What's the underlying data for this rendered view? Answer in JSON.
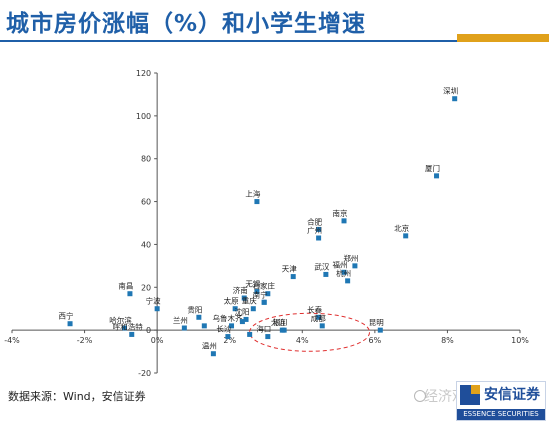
{
  "title": "城市房价涨幅（%）和小学生增速",
  "source": "数据来源：Wind，安信证券",
  "logo": {
    "cn": "安信证券",
    "en": "ESSENCE SECURITIES"
  },
  "watermark": "经济观点事",
  "colors": {
    "accent": "#1f5fa8",
    "marker": "#1f77b4",
    "gold": "#e0a11b",
    "ellipse": "#e03030"
  },
  "chart_data": {
    "type": "scatter",
    "title": "",
    "xlabel": "",
    "ylabel": "",
    "xlim": [
      -0.04,
      0.1
    ],
    "ylim": [
      -20,
      120
    ],
    "x_ticks": [
      "-4%",
      "-2%",
      "0%",
      "2%",
      "4%",
      "6%",
      "8%",
      "10%"
    ],
    "y_ticks": [
      "-20",
      "0",
      "20",
      "40",
      "60",
      "80",
      "100",
      "120"
    ],
    "grid": false,
    "points": [
      {
        "label": "深圳",
        "x": 0.082,
        "y": 108
      },
      {
        "label": "厦门",
        "x": 0.077,
        "y": 72
      },
      {
        "label": "上海",
        "x": 0.0275,
        "y": 60
      },
      {
        "label": "南京",
        "x": 0.0515,
        "y": 51
      },
      {
        "label": "合肥",
        "x": 0.0445,
        "y": 47
      },
      {
        "label": "广州",
        "x": 0.0445,
        "y": 43
      },
      {
        "label": "北京",
        "x": 0.0685,
        "y": 44
      },
      {
        "label": "郑州",
        "x": 0.0545,
        "y": 30
      },
      {
        "label": "武汉",
        "x": 0.0465,
        "y": 26
      },
      {
        "label": "福州",
        "x": 0.0515,
        "y": 27
      },
      {
        "label": "杭州",
        "x": 0.0525,
        "y": 23
      },
      {
        "label": "天津",
        "x": 0.0375,
        "y": 25
      },
      {
        "label": "南昌",
        "x": -0.0075,
        "y": 17
      },
      {
        "label": "宁波",
        "x": 0.0,
        "y": 10
      },
      {
        "label": "无锡",
        "x": 0.0275,
        "y": 18
      },
      {
        "label": "石家庄",
        "x": 0.0305,
        "y": 17
      },
      {
        "label": "济南",
        "x": 0.024,
        "y": 15
      },
      {
        "label": "南宁",
        "x": 0.0295,
        "y": 13
      },
      {
        "label": "太原",
        "x": 0.0215,
        "y": 10
      },
      {
        "label": "重庆",
        "x": 0.0265,
        "y": 10
      },
      {
        "label": "西宁",
        "x": -0.024,
        "y": 3
      },
      {
        "label": "沈阳",
        "x": 0.0245,
        "y": 5
      },
      {
        "label": "贵阳",
        "x": 0.0115,
        "y": 6
      },
      {
        "label": "兰州",
        "x": 0.0075,
        "y": 1
      },
      {
        "label": "长春",
        "x": 0.0445,
        "y": 6
      },
      {
        "label": "乌鲁木齐",
        "x": 0.0205,
        "y": 2
      },
      {
        "label": "哈尔滨",
        "x": -0.009,
        "y": 1
      },
      {
        "label": "昆明",
        "x": 0.0615,
        "y": 0
      },
      {
        "label": "呼和浩特",
        "x": -0.007,
        "y": -2
      },
      {
        "label": "成都",
        "x": 0.0455,
        "y": 2
      },
      {
        "label": "银川",
        "x": 0.035,
        "y": 0
      },
      {
        "label": "海口",
        "x": 0.0305,
        "y": -3
      },
      {
        "label": "长沙",
        "x": 0.0195,
        "y": -3
      },
      {
        "label": "大连",
        "x": 0.0345,
        "y": 0
      },
      {
        "label": "温州",
        "x": 0.0155,
        "y": -11
      },
      {
        "label": "",
        "x": 0.0255,
        "y": -2
      },
      {
        "label": "",
        "x": 0.0235,
        "y": 4
      },
      {
        "label": "",
        "x": 0.013,
        "y": 2
      },
      {
        "label": "",
        "x": 0.0295,
        "y": 13
      }
    ]
  }
}
